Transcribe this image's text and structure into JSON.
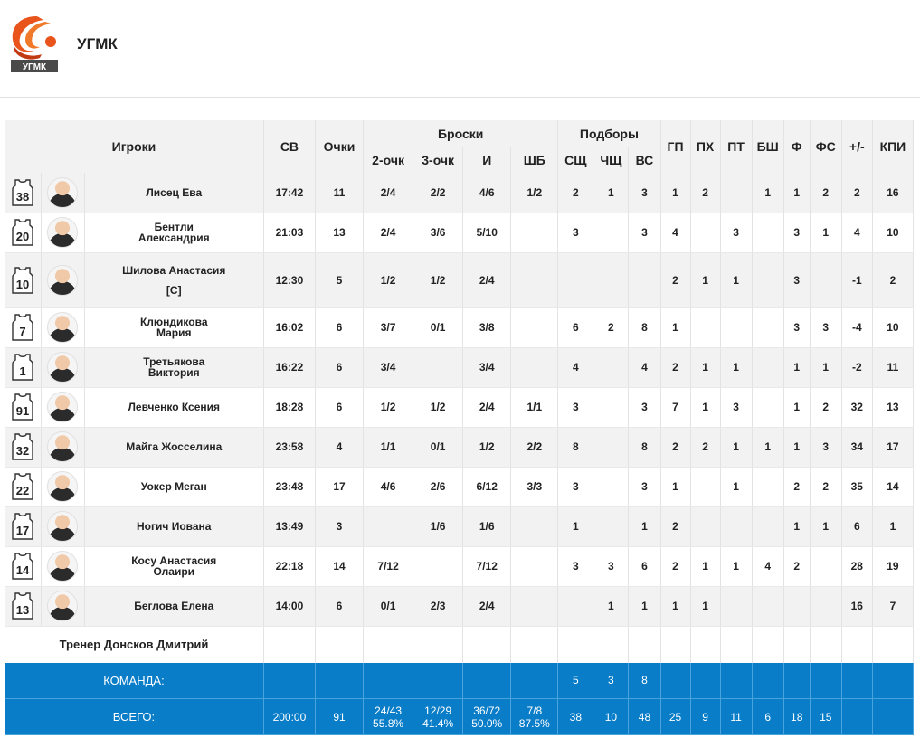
{
  "team": {
    "name": "УГМК",
    "logo_caption": "УГМК"
  },
  "headers": {
    "players": "Игроки",
    "sv": "СВ",
    "points": "Очки",
    "shots": "Броски",
    "rebounds": "Подборы",
    "two": "2-очк",
    "three": "3-очк",
    "i": "И",
    "sb": "ШБ",
    "sshch": "СЩ",
    "chshch": "ЧЩ",
    "vs": "ВС",
    "gp": "ГП",
    "ph": "ПХ",
    "pt": "ПТ",
    "bsh": "БШ",
    "f": "Ф",
    "fs": "ФС",
    "pm": "+/-",
    "kpi": "КПИ"
  },
  "players": [
    {
      "num": "38",
      "name1": "Лисец Ева",
      "name2": "",
      "sv": "17:42",
      "pts": "11",
      "two": "2/4",
      "three": "2/2",
      "i": "4/6",
      "sb": "1/2",
      "sshch": "2",
      "chshch": "1",
      "vs": "3",
      "gp": "1",
      "ph": "2",
      "pt": "",
      "bsh": "1",
      "f": "1",
      "fs": "2",
      "pm": "2",
      "kpi": "16"
    },
    {
      "num": "20",
      "name1": "Бентли",
      "name2": "Александрия",
      "sv": "21:03",
      "pts": "13",
      "two": "2/4",
      "three": "3/6",
      "i": "5/10",
      "sb": "",
      "sshch": "3",
      "chshch": "",
      "vs": "3",
      "gp": "4",
      "ph": "",
      "pt": "3",
      "bsh": "",
      "f": "3",
      "fs": "1",
      "pm": "4",
      "kpi": "10"
    },
    {
      "num": "10",
      "name1": "Шилова Анастасия",
      "name2": "",
      "captain": "[C]",
      "sv": "12:30",
      "pts": "5",
      "two": "1/2",
      "three": "1/2",
      "i": "2/4",
      "sb": "",
      "sshch": "",
      "chshch": "",
      "vs": "",
      "gp": "2",
      "ph": "1",
      "pt": "1",
      "bsh": "",
      "f": "3",
      "fs": "",
      "pm": "-1",
      "kpi": "2"
    },
    {
      "num": "7",
      "name1": "Клюндикова",
      "name2": "Мария",
      "sv": "16:02",
      "pts": "6",
      "two": "3/7",
      "three": "0/1",
      "i": "3/8",
      "sb": "",
      "sshch": "6",
      "chshch": "2",
      "vs": "8",
      "gp": "1",
      "ph": "",
      "pt": "",
      "bsh": "",
      "f": "3",
      "fs": "3",
      "pm": "-4",
      "kpi": "10"
    },
    {
      "num": "1",
      "name1": "Третьякова",
      "name2": "Виктория",
      "sv": "16:22",
      "pts": "6",
      "two": "3/4",
      "three": "",
      "i": "3/4",
      "sb": "",
      "sshch": "4",
      "chshch": "",
      "vs": "4",
      "gp": "2",
      "ph": "1",
      "pt": "1",
      "bsh": "",
      "f": "1",
      "fs": "1",
      "pm": "-2",
      "kpi": "11"
    },
    {
      "num": "91",
      "name1": "Левченко Ксения",
      "name2": "",
      "sv": "18:28",
      "pts": "6",
      "two": "1/2",
      "three": "1/2",
      "i": "2/4",
      "sb": "1/1",
      "sshch": "3",
      "chshch": "",
      "vs": "3",
      "gp": "7",
      "ph": "1",
      "pt": "3",
      "bsh": "",
      "f": "1",
      "fs": "2",
      "pm": "32",
      "kpi": "13"
    },
    {
      "num": "32",
      "name1": "Майга Жосселина",
      "name2": "",
      "sv": "23:58",
      "pts": "4",
      "two": "1/1",
      "three": "0/1",
      "i": "1/2",
      "sb": "2/2",
      "sshch": "8",
      "chshch": "",
      "vs": "8",
      "gp": "2",
      "ph": "2",
      "pt": "1",
      "bsh": "1",
      "f": "1",
      "fs": "3",
      "pm": "34",
      "kpi": "17"
    },
    {
      "num": "22",
      "name1": "Уокер Меган",
      "name2": "",
      "sv": "23:48",
      "pts": "17",
      "two": "4/6",
      "three": "2/6",
      "i": "6/12",
      "sb": "3/3",
      "sshch": "3",
      "chshch": "",
      "vs": "3",
      "gp": "1",
      "ph": "",
      "pt": "1",
      "bsh": "",
      "f": "2",
      "fs": "2",
      "pm": "35",
      "kpi": "14"
    },
    {
      "num": "17",
      "name1": "Ногич Иована",
      "name2": "",
      "sv": "13:49",
      "pts": "3",
      "two": "",
      "three": "1/6",
      "i": "1/6",
      "sb": "",
      "sshch": "1",
      "chshch": "",
      "vs": "1",
      "gp": "2",
      "ph": "",
      "pt": "",
      "bsh": "",
      "f": "1",
      "fs": "1",
      "pm": "6",
      "kpi": "1"
    },
    {
      "num": "14",
      "name1": "Косу Анастасия",
      "name2": "Олаири",
      "sv": "22:18",
      "pts": "14",
      "two": "7/12",
      "three": "",
      "i": "7/12",
      "sb": "",
      "sshch": "3",
      "chshch": "3",
      "vs": "6",
      "gp": "2",
      "ph": "1",
      "pt": "1",
      "bsh": "4",
      "f": "2",
      "fs": "",
      "pm": "28",
      "kpi": "19"
    },
    {
      "num": "13",
      "name1": "Беглова Елена",
      "name2": "",
      "sv": "14:00",
      "pts": "6",
      "two": "0/1",
      "three": "2/3",
      "i": "2/4",
      "sb": "",
      "sshch": "",
      "chshch": "1",
      "vs": "1",
      "gp": "1",
      "ph": "1",
      "pt": "",
      "bsh": "",
      "f": "",
      "fs": "",
      "pm": "16",
      "kpi": "7"
    }
  ],
  "coach": "Тренер Донсков Дмитрий",
  "team_row": {
    "label": "КОМАНДА:",
    "sshch": "5",
    "chshch": "3",
    "vs": "8"
  },
  "total_row": {
    "label": "ВСЕГО:",
    "sv": "200:00",
    "pts": "91",
    "two": "24/43",
    "two_pct": "55.8%",
    "three": "12/29",
    "three_pct": "41.4%",
    "i": "36/72",
    "i_pct": "50.0%",
    "sb": "7/8",
    "sb_pct": "87.5%",
    "sshch": "38",
    "chshch": "10",
    "vs": "48",
    "gp": "25",
    "ph": "9",
    "pt": "11",
    "bsh": "6",
    "f": "18",
    "fs": "15",
    "pm": "",
    "kpi": ""
  },
  "colors": {
    "accent": "#0a7dc8",
    "logo_orange": "#e8541c"
  }
}
